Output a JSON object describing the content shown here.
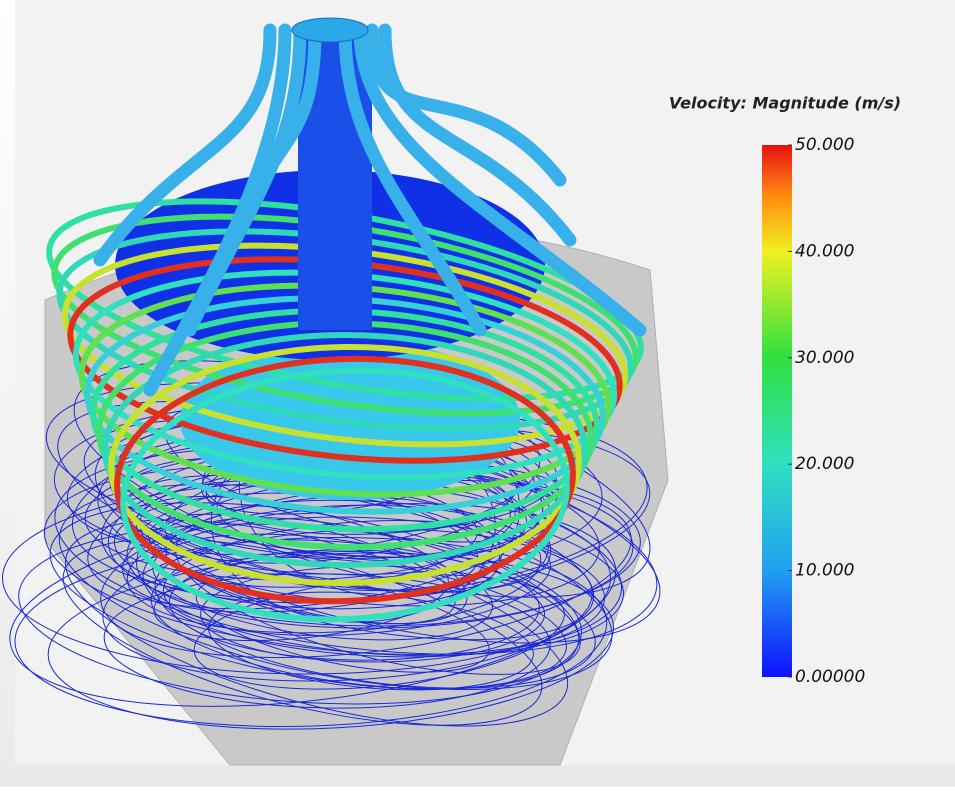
{
  "legend": {
    "title": "Velocity: Magnitude (m/s)",
    "range": [
      0,
      50
    ],
    "ticks": [
      {
        "value": 50,
        "label": "50.000"
      },
      {
        "value": 40,
        "label": "40.000"
      },
      {
        "value": 30,
        "label": "30.000"
      },
      {
        "value": 20,
        "label": "20.000"
      },
      {
        "value": 10,
        "label": "10.000"
      },
      {
        "value": 0,
        "label": "0.00000"
      }
    ]
  }
}
